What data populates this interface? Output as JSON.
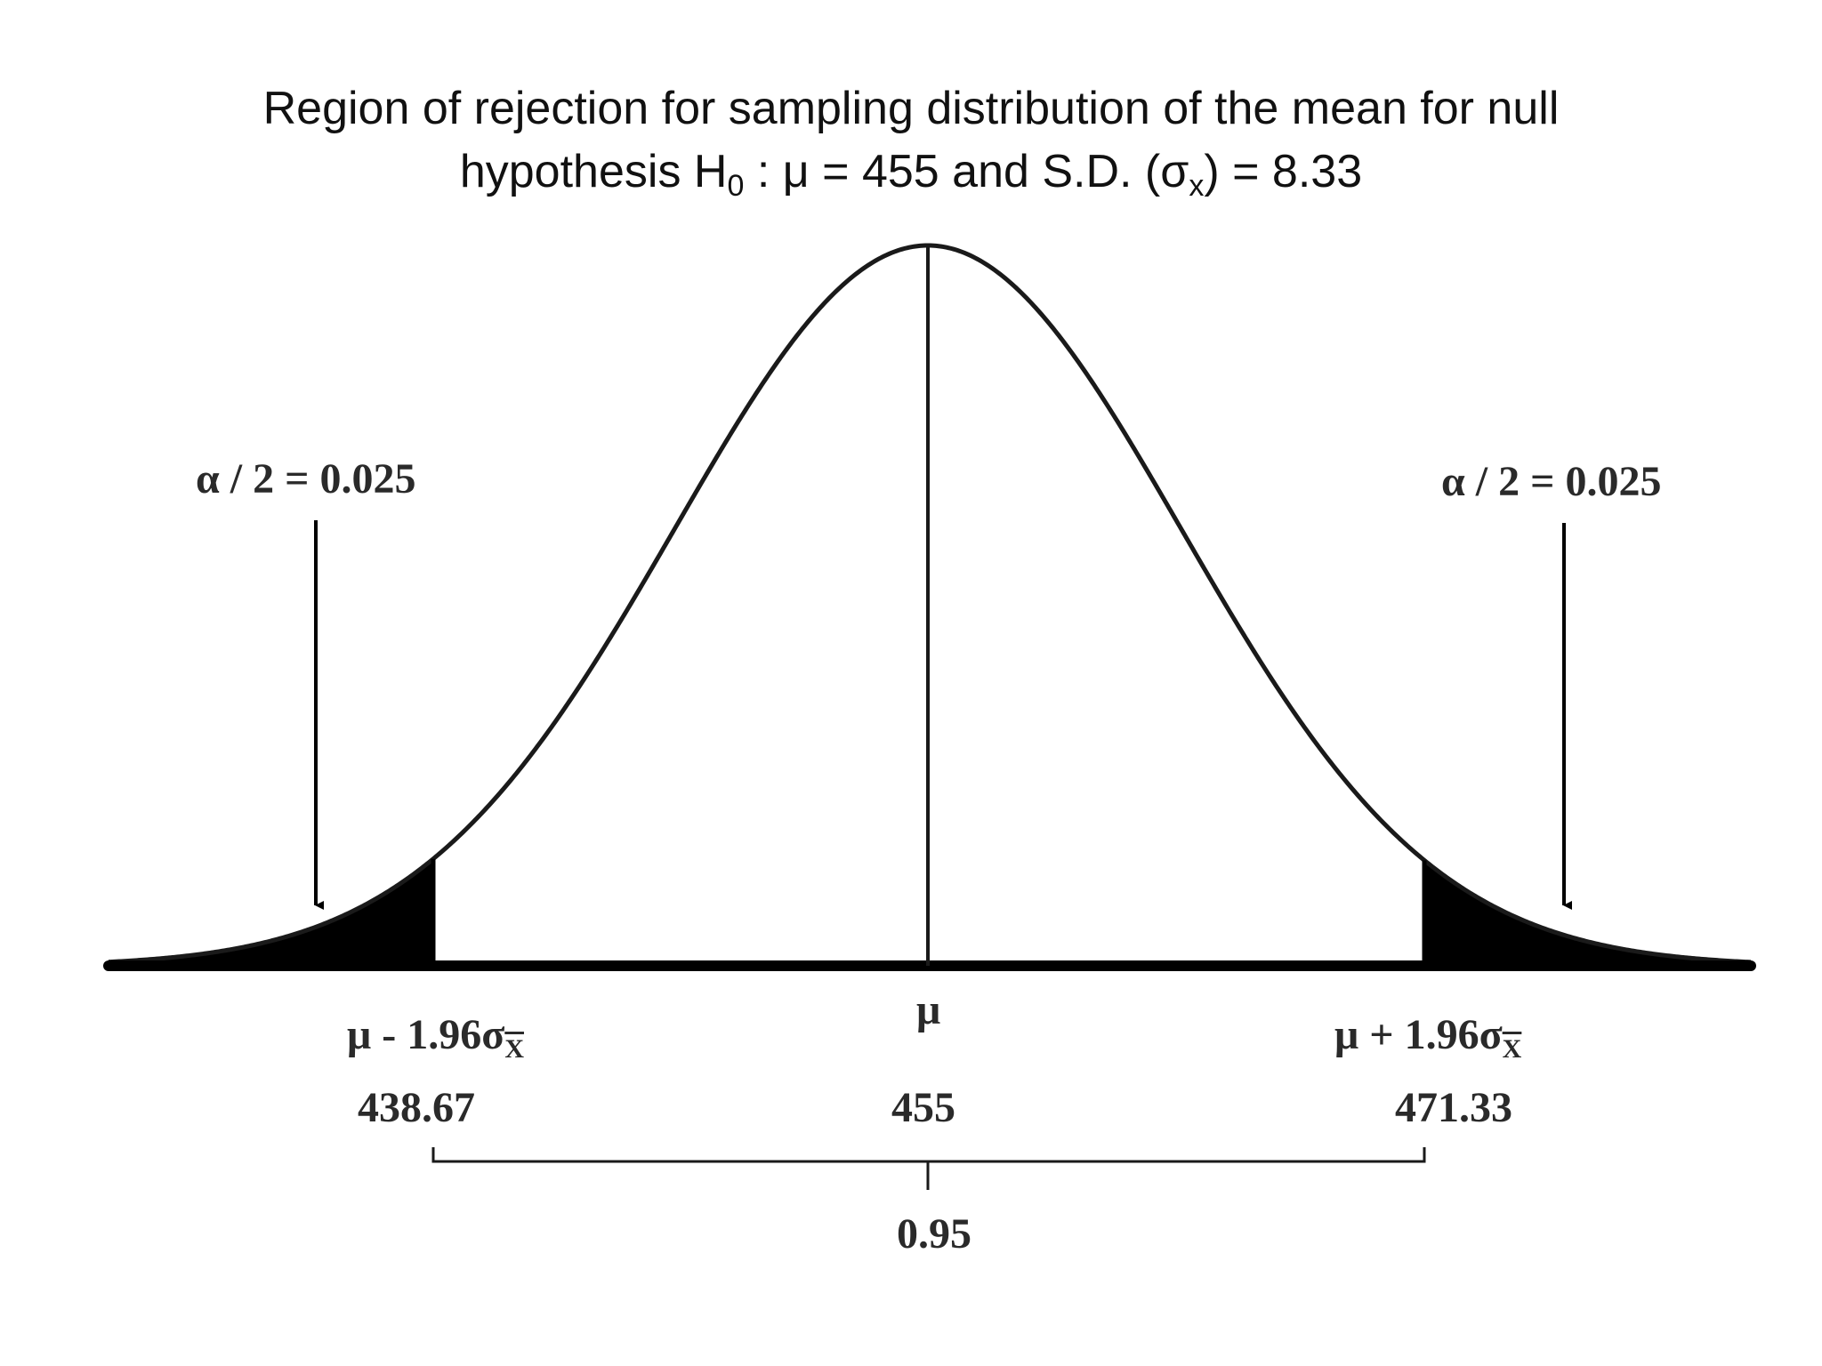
{
  "title": {
    "line1": "Region of rejection for sampling distribution of the mean for null",
    "line2_prefix": "hypothesis H",
    "line2_sub": "0",
    "line2_mid": " : μ = 455 and  S.D. (σ",
    "line2_sub2": "x",
    "line2_suffix": ") = 8.33"
  },
  "labels": {
    "alpha_left": "α / 2 = 0.025",
    "alpha_right": "α / 2 = 0.025",
    "mu": "μ",
    "critical_left_prefix": "μ - 1.96σ",
    "critical_right_prefix": "μ + 1.96σ",
    "critical_sub": "X",
    "value_left": "438.67",
    "value_center": "455",
    "value_right": "471.33",
    "acceptance_prob": "0.95"
  },
  "distribution": {
    "mean": 455,
    "sd": 8.33,
    "z_critical": 1.96,
    "lower_critical": 438.67,
    "upper_critical": 471.33,
    "tail_prob": 0.025,
    "acceptance_prob": 0.95
  },
  "colors": {
    "curve": "#1a1a1a",
    "tail_fill": "#000000",
    "axis": "#000000"
  }
}
